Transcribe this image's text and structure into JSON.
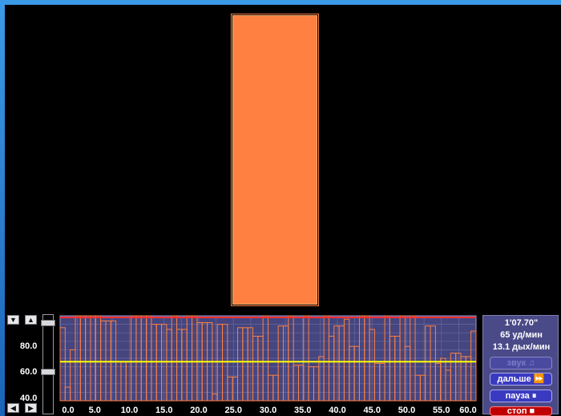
{
  "colors": {
    "bar": "#ff8040",
    "chart_bg": "#45457f",
    "grid": "#6a6aa0",
    "threshold": "#ffff00",
    "top_line": "#ff3030"
  },
  "controls": {
    "up_label": "▲",
    "down_label": "▼",
    "left_label": "◀",
    "right_label": "▶",
    "slider_level_top": 0.95,
    "slider_level_mid": 0.45
  },
  "y_axis": {
    "labels": [
      "80.0",
      "60.0",
      "40.0"
    ]
  },
  "chart_data": {
    "type": "bar",
    "title": "",
    "xlabel": "",
    "ylabel": "",
    "xlim": [
      0,
      60
    ],
    "ylim": [
      40,
      90
    ],
    "x_ticks": [
      "0.0",
      "5.0",
      "10.0",
      "15.0",
      "20.0",
      "25.0",
      "30.0",
      "35.0",
      "40.0",
      "45.0",
      "50.0",
      "55.0",
      "60.0"
    ],
    "threshold": 63,
    "series": [
      {
        "values": [
          83,
          48,
          70,
          90,
          90,
          90,
          90,
          90,
          87,
          87,
          87,
          63,
          63,
          63,
          90,
          90,
          90,
          90,
          85,
          85,
          85,
          82,
          90,
          82,
          82,
          90,
          90,
          86,
          86,
          86,
          44,
          85,
          85,
          54,
          54,
          83,
          83,
          83,
          78,
          78,
          90,
          55,
          55,
          84,
          84,
          90,
          61,
          61,
          90,
          60,
          60,
          66,
          90,
          78,
          84,
          84,
          88,
          72,
          72,
          90,
          90,
          82,
          62,
          62,
          90,
          78,
          78,
          90,
          72,
          90,
          55,
          55,
          84,
          84,
          62,
          65,
          58,
          68,
          68,
          66,
          66,
          81
        ]
      }
    ]
  },
  "status": {
    "time": "1'07.70\"",
    "heart_rate": "65 уд/мин",
    "breath_rate": "13.1 дых/мин"
  },
  "buttons": {
    "sound": "звук ♫",
    "next": "дальше ⏩",
    "pause": "пауза ⏸",
    "stop": "стоп ■"
  }
}
